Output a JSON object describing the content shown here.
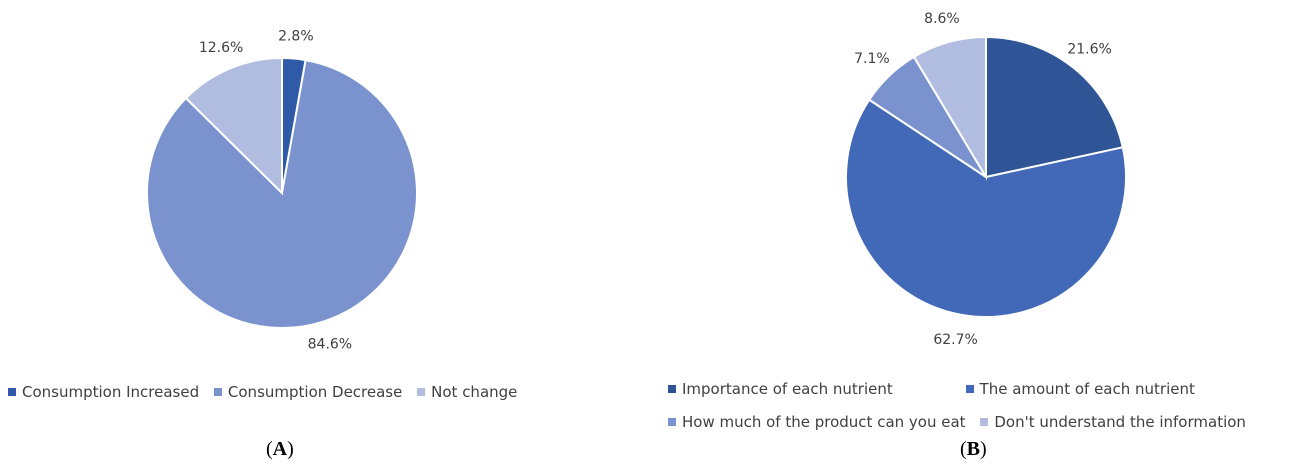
{
  "chart_data": [
    {
      "type": "pie",
      "panel_label": "A",
      "slices": [
        {
          "label": "Consumption Increased",
          "value": 2.8,
          "value_label": "2.8%",
          "color": "#2E5AA8"
        },
        {
          "label": "Consumption Decrease",
          "value": 84.6,
          "value_label": "84.6%",
          "color": "#7A93CF"
        },
        {
          "label": "Not change",
          "value": 12.6,
          "value_label": "12.6%",
          "color": "#B1BDE0"
        }
      ]
    },
    {
      "type": "pie",
      "panel_label": "B",
      "slices": [
        {
          "label": "Importance of each nutrient",
          "value": 21.6,
          "value_label": "21.6%",
          "color": "#2F5597"
        },
        {
          "label": "The amount of each nutrient",
          "value": 62.7,
          "value_label": "62.7%",
          "color": "#4169B8"
        },
        {
          "label": "How much of the product can you eat",
          "value": 7.1,
          "value_label": "7.1%",
          "color": "#7A93CF"
        },
        {
          "label": "Don't understand the information",
          "value": 8.6,
          "value_label": "8.6%",
          "color": "#B1BDE0"
        }
      ]
    }
  ]
}
